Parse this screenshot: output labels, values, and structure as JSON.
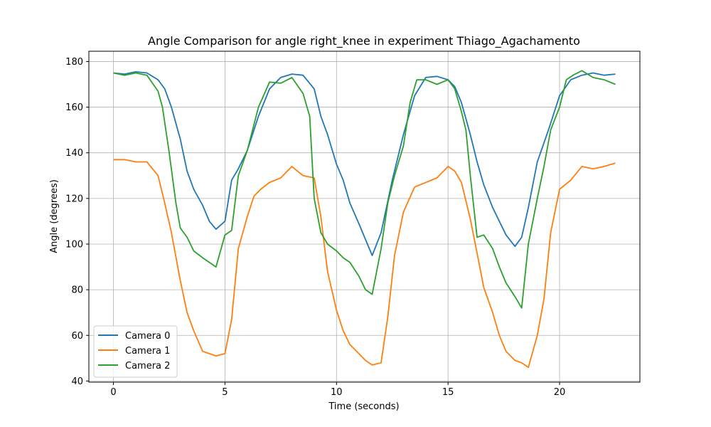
{
  "chart_data": {
    "type": "line",
    "title": "Angle Comparison for angle right_knee in experiment Thiago_Agachamento",
    "xlabel": "Time (seconds)",
    "ylabel": "Angle (degrees)",
    "xlim": [
      -1.1,
      23.6
    ],
    "ylim": [
      39.5,
      184.5
    ],
    "xticks": [
      0,
      5,
      10,
      15,
      20
    ],
    "yticks": [
      40,
      60,
      80,
      100,
      120,
      140,
      160,
      180
    ],
    "grid": true,
    "legend_position": "lower-left",
    "series": [
      {
        "name": "Camera 0",
        "color": "#1f77b4",
        "x": [
          0,
          0.5,
          1,
          1.5,
          2,
          2.3,
          2.6,
          3,
          3.3,
          3.6,
          4,
          4.3,
          4.6,
          5,
          5.3,
          5.6,
          6,
          6.5,
          7,
          7.5,
          8,
          8.5,
          9,
          9.3,
          9.6,
          10,
          10.3,
          10.6,
          11,
          11.3,
          11.6,
          12,
          12.5,
          13,
          13.5,
          14,
          14.5,
          15,
          15.3,
          15.6,
          16,
          16.3,
          16.6,
          17,
          17.3,
          17.6,
          18,
          18.3,
          18.6,
          19,
          19.5,
          20,
          20.5,
          21,
          21.5,
          22,
          22.5
        ],
        "y": [
          175,
          174.5,
          175.5,
          175,
          172,
          168,
          160,
          146,
          132,
          124,
          117,
          110,
          106.5,
          110,
          128,
          133,
          141,
          156,
          168,
          173,
          174.5,
          174,
          168,
          156,
          148,
          135,
          128,
          118,
          109,
          102,
          95,
          105,
          128,
          148,
          165,
          173,
          173.5,
          172,
          169,
          162,
          148,
          136,
          126,
          116,
          110,
          104,
          99,
          103,
          116,
          136,
          150,
          165,
          172,
          174,
          175,
          174,
          174.5
        ]
      },
      {
        "name": "Camera 1",
        "color": "#ff7f0e",
        "x": [
          0,
          0.5,
          1,
          1.5,
          2,
          2.3,
          2.6,
          3,
          3.3,
          3.6,
          4,
          4.3,
          4.6,
          5,
          5.3,
          5.6,
          6,
          6.3,
          6.6,
          7,
          7.5,
          8,
          8.5,
          9,
          9.3,
          9.6,
          10,
          10.3,
          10.6,
          11,
          11.3,
          11.6,
          12,
          12.3,
          12.6,
          13,
          13.5,
          14,
          14.5,
          15,
          15.3,
          15.6,
          16,
          16.3,
          16.6,
          17,
          17.3,
          17.6,
          18,
          18.3,
          18.6,
          19,
          19.3,
          19.6,
          20,
          20.5,
          21,
          21.5,
          22,
          22.5
        ],
        "y": [
          137,
          137,
          136,
          136,
          130,
          118,
          105,
          84,
          70,
          62,
          53,
          52,
          51,
          52,
          67,
          98,
          112,
          121,
          124,
          127,
          129,
          134,
          130,
          129,
          112,
          88,
          71,
          62,
          56,
          52,
          49,
          47,
          48,
          68,
          95,
          114,
          125,
          127,
          129,
          134,
          132,
          127,
          111,
          96,
          81,
          70,
          60,
          53,
          49,
          48,
          46,
          60,
          76,
          105,
          124,
          128,
          134,
          133,
          134,
          135.5
        ]
      },
      {
        "name": "Camera 2",
        "color": "#2ca02c",
        "x": [
          0,
          0.5,
          1,
          1.5,
          2,
          2.2,
          2.5,
          2.8,
          3,
          3.3,
          3.6,
          4,
          4.3,
          4.6,
          5,
          5.3,
          5.6,
          6,
          6.5,
          7,
          7.5,
          8,
          8.5,
          8.8,
          9,
          9.3,
          9.6,
          10,
          10.3,
          10.6,
          11,
          11.3,
          11.6,
          12,
          12.3,
          12.6,
          13,
          13.3,
          13.6,
          14,
          14.5,
          15,
          15.3,
          15.6,
          15.8,
          16,
          16.3,
          16.6,
          17,
          17.3,
          17.6,
          18,
          18.3,
          18.6,
          19,
          19.3,
          19.6,
          20,
          20.3,
          20.6,
          21,
          21.5,
          22,
          22.5
        ],
        "y": [
          175,
          174,
          175,
          174,
          167,
          160,
          140,
          118,
          107,
          103,
          97,
          94,
          92,
          90,
          104,
          106,
          130,
          141,
          160,
          171,
          170.5,
          173,
          166,
          156,
          120,
          105,
          100,
          97,
          94,
          92,
          86,
          80,
          78,
          98,
          118,
          130,
          143,
          162,
          172,
          172,
          170,
          172,
          168,
          158,
          150,
          130,
          103,
          104,
          98,
          90,
          83,
          77,
          72,
          100,
          120,
          134,
          150,
          160,
          172,
          174,
          176,
          173,
          172,
          170
        ]
      }
    ]
  }
}
